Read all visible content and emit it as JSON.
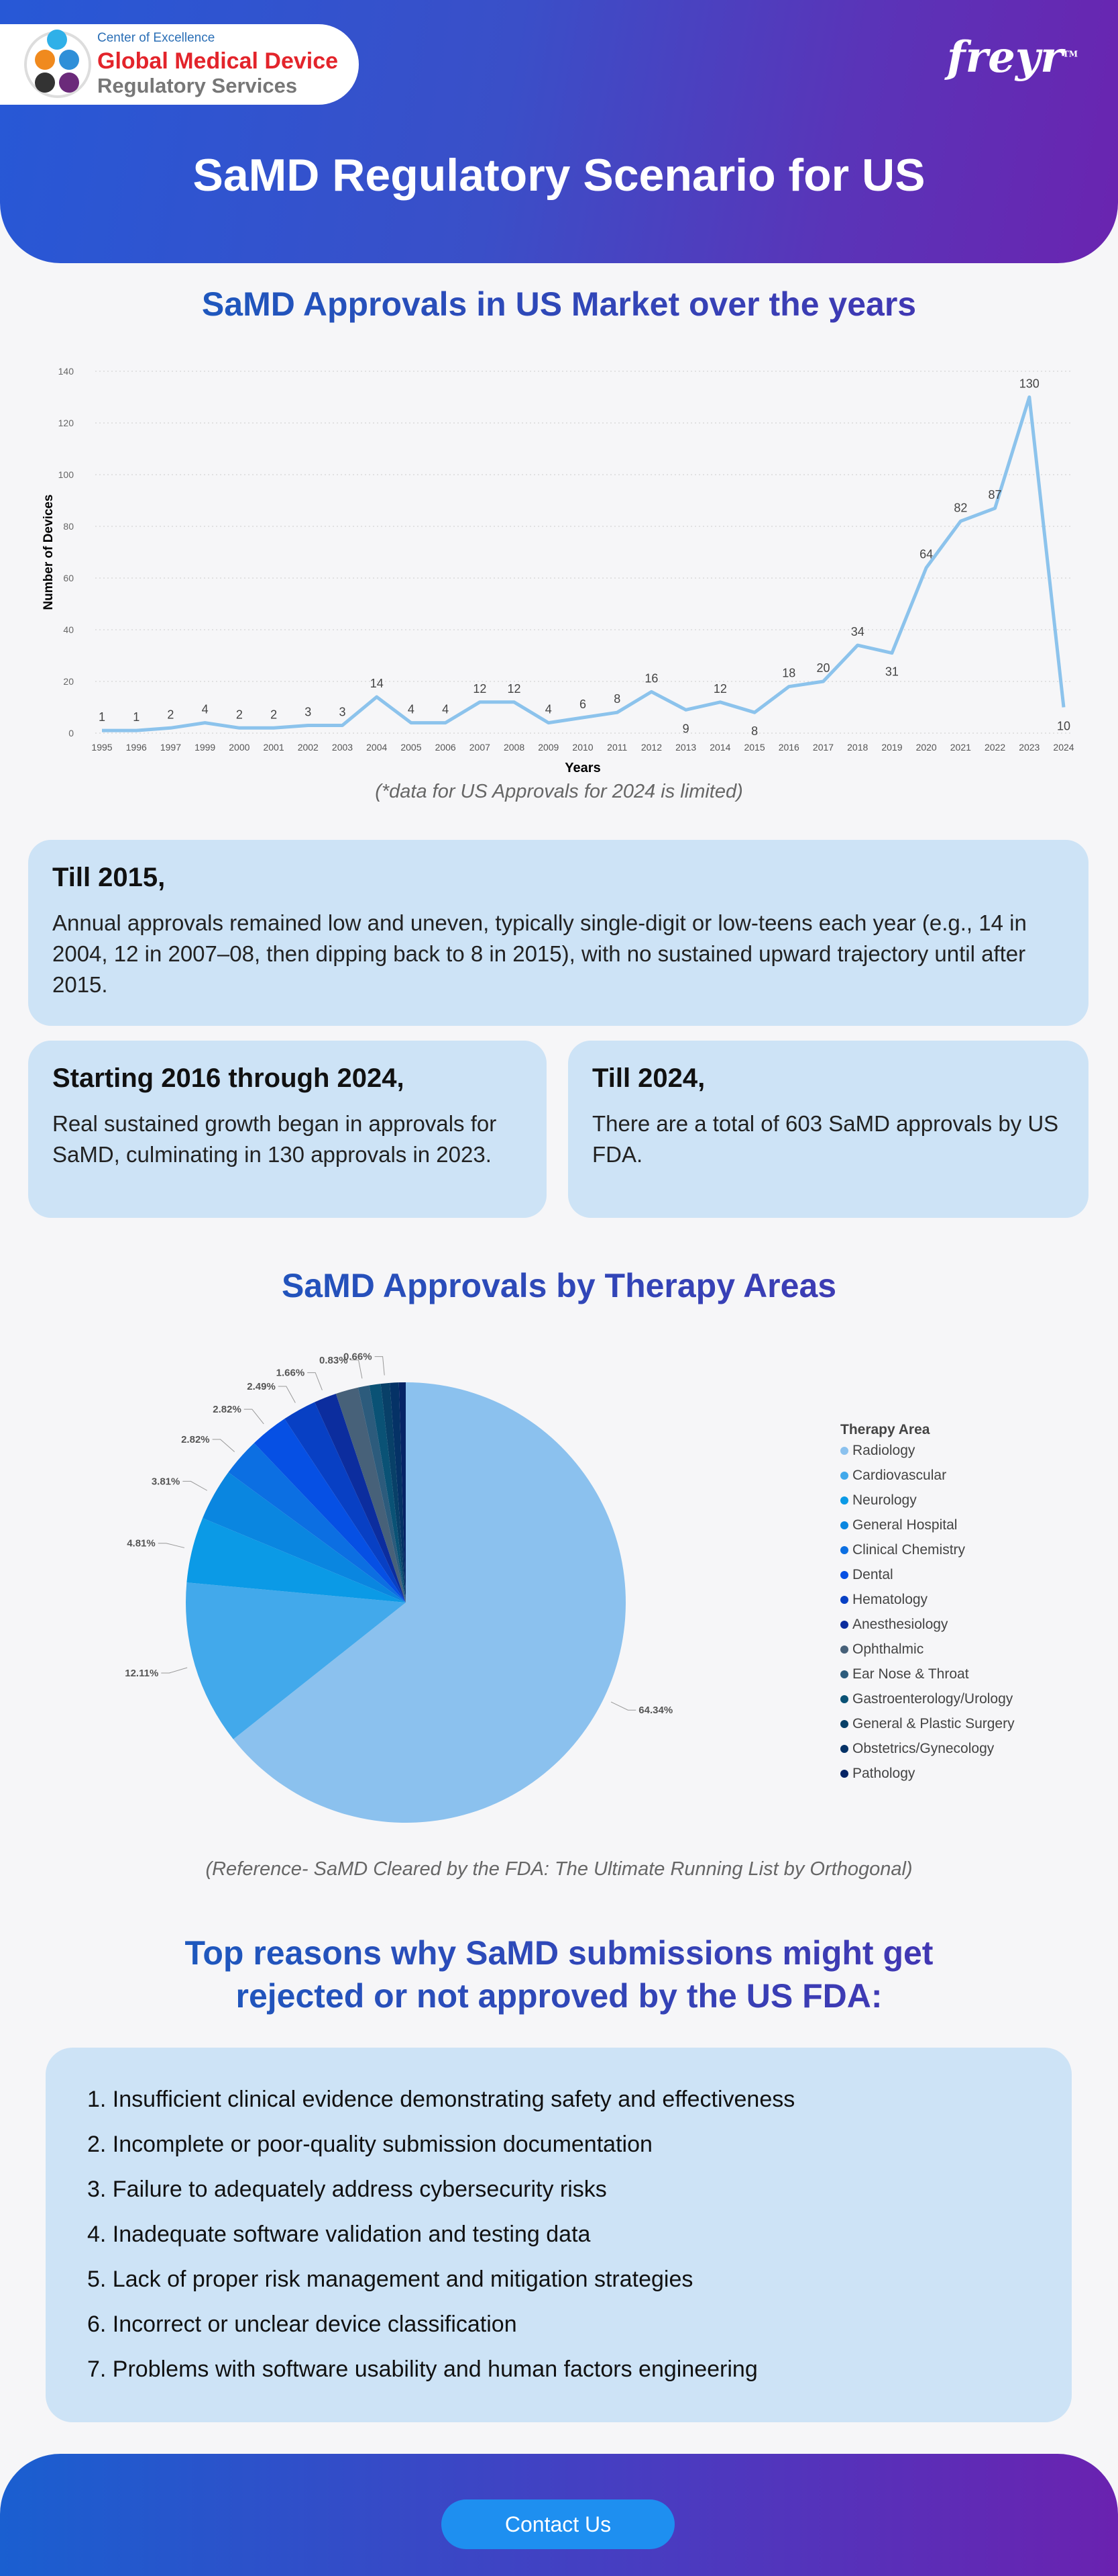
{
  "header": {
    "coe_line1": "Center of Excellence",
    "coe_line2": "Global Medical Device",
    "coe_line3": "Regulatory Services",
    "brand": "freyr",
    "tm": "TM",
    "title": "SaMD Regulatory Scenario for US"
  },
  "colors": {
    "line": "#8cc3ec",
    "box": "#cde3f6",
    "accent": "#1e8ff0"
  },
  "chart_data": [
    {
      "type": "line",
      "title": "SaMD Approvals in US Market over the years",
      "xlabel": "Years",
      "ylabel": "Number of Devices",
      "ylim": [
        0,
        140
      ],
      "yticks": [
        0,
        20,
        40,
        60,
        80,
        100,
        120,
        140
      ],
      "grid": true,
      "x": [
        "1995",
        "1996",
        "1997",
        "1999",
        "2000",
        "2001",
        "2002",
        "2003",
        "2004",
        "2005",
        "2006",
        "2007",
        "2008",
        "2009",
        "2010",
        "2011",
        "2012",
        "2013",
        "2014",
        "2015",
        "2016",
        "2017",
        "2018",
        "2019",
        "2020",
        "2021",
        "2022",
        "2023",
        "2024"
      ],
      "values": [
        1,
        1,
        2,
        4,
        2,
        2,
        3,
        3,
        14,
        4,
        4,
        12,
        12,
        4,
        6,
        8,
        16,
        9,
        12,
        8,
        18,
        20,
        34,
        31,
        64,
        82,
        87,
        130,
        10
      ],
      "note": "(*data for US Approvals for 2024 is limited)"
    },
    {
      "type": "pie",
      "title": "SaMD Approvals by Therapy Areas",
      "legend_title": "Therapy Area",
      "legend_position": "right",
      "slices": [
        {
          "name": "Radiology",
          "value": 64.34,
          "label": "64.34%",
          "color": "#8bc1ee"
        },
        {
          "name": "Cardiovascular",
          "value": 12.11,
          "label": "12.11%",
          "color": "#42a9eb"
        },
        {
          "name": "Neurology",
          "value": 4.81,
          "label": "4.81%",
          "color": "#0b9ae6"
        },
        {
          "name": "General Hospital",
          "value": 3.81,
          "label": "3.81%",
          "color": "#0a86e0"
        },
        {
          "name": "Clinical Chemistry",
          "value": 2.82,
          "label": "2.82%",
          "color": "#0c6fe2"
        },
        {
          "name": "Dental",
          "value": 2.82,
          "label": "2.82%",
          "color": "#0650e4"
        },
        {
          "name": "Hematology",
          "value": 2.49,
          "label": "2.49%",
          "color": "#0840c4"
        },
        {
          "name": "Anesthesiology",
          "value": 1.66,
          "label": "1.66%",
          "color": "#0c2d9e"
        },
        {
          "name": "Ophthalmic",
          "value": 1.66,
          "label": null,
          "color": "#476179"
        },
        {
          "name": "Ear Nose & Throat",
          "value": 0.83,
          "label": "0.83%",
          "color": "#2c5b7c"
        },
        {
          "name": "Gastroenterology/Urology",
          "value": 0.83,
          "label": null,
          "color": "#0a5275"
        },
        {
          "name": "General & Plastic Surgery",
          "value": 0.66,
          "label": "0.66%",
          "color": "#084068"
        },
        {
          "name": "Obstetrics/Gynecology",
          "value": 0.66,
          "label": null,
          "color": "#053266"
        },
        {
          "name": "Pathology",
          "value": 0.5,
          "label": null,
          "color": "#062466"
        }
      ],
      "reference": "(Reference- SaMD Cleared by the FDA: The Ultimate Running List by Orthogonal)"
    }
  ],
  "boxes": [
    {
      "title": "Till 2015,",
      "text": "Annual approvals remained low and uneven, typically single-digit or low-teens each year (e.g., 14 in 2004, 12 in 2007–08, then dipping back to 8 in 2015), with no sustained upward trajectory until after 2015."
    },
    {
      "title": "Starting 2016 through 2024,",
      "text": "Real sustained growth began in approvals for SaMD, culminating in 130 approvals in 2023."
    },
    {
      "title": "Till 2024,",
      "text": "There are a total of 603 SaMD approvals by US FDA."
    }
  ],
  "reasons": {
    "title_line1": "Top reasons why SaMD  submissions might get",
    "title_line2": "rejected or not approved by the US FDA:",
    "items": [
      "1.  Insufficient clinical evidence demonstrating safety and effectiveness",
      "2.  Incomplete or poor-quality submission documentation",
      "3.  Failure to adequately address cybersecurity risks",
      "4.  Inadequate software validation and testing data",
      "5.  Lack of proper risk management and mitigation strategies",
      "6.  Incorrect or unclear device classification",
      "7.  Problems with software usability and human factors engineering"
    ]
  },
  "footer": {
    "contact": "Contact Us"
  }
}
